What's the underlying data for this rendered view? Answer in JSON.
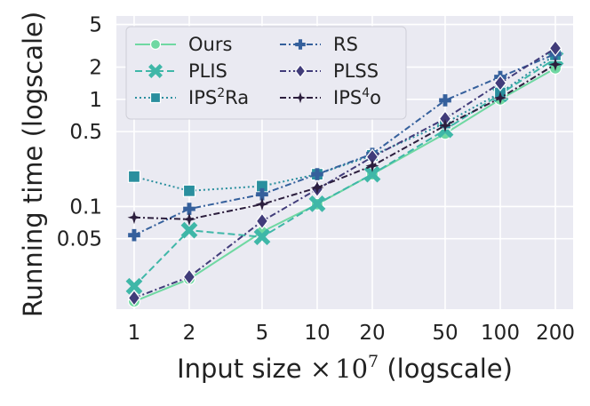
{
  "chart_data": {
    "type": "line",
    "xlabel": "Input size ×10^7 (logscale)",
    "xlabel_parts": {
      "main": "Input size ",
      "times": "×",
      "base": "10",
      "exp": "7",
      "suffix": " (logscale)"
    },
    "ylabel": "Running time (logscale)",
    "xscale": "log",
    "yscale": "log",
    "xlim": [
      0.8,
      250
    ],
    "ylim": [
      0.011,
      6
    ],
    "grid": true,
    "background": "#eaeaf2",
    "legend_position": "top-left",
    "x": [
      1,
      2,
      5,
      10,
      20,
      50,
      100,
      200
    ],
    "x_ticks": [
      "1",
      "2",
      "5",
      "10",
      "20",
      "50",
      "100",
      "200"
    ],
    "y_ticks": [
      {
        "value": 0.05,
        "label": "0.05"
      },
      {
        "value": 0.1,
        "label": "0.1"
      },
      {
        "value": 0.5,
        "label": "0.5"
      },
      {
        "value": 1,
        "label": "1"
      },
      {
        "value": 2,
        "label": "2"
      },
      {
        "value": 5,
        "label": "5"
      }
    ],
    "y_minor_grid": [
      0.05,
      0.1,
      0.5,
      1,
      2,
      5
    ],
    "series": [
      {
        "name": "Ours",
        "base": "Ours",
        "sup": "",
        "suffix": "",
        "color": "#6fd8a2",
        "dash": "",
        "marker": "circle",
        "values": [
          0.013,
          0.021,
          0.058,
          0.105,
          0.2,
          0.48,
          1.0,
          1.95
        ]
      },
      {
        "name": "PLIS",
        "base": "PLIS",
        "sup": "",
        "suffix": "",
        "color": "#3fb7a8",
        "dash": "8,4",
        "marker": "x",
        "values": [
          0.018,
          0.06,
          0.052,
          0.106,
          0.2,
          0.52,
          1.12,
          2.4
        ]
      },
      {
        "name": "IPS²Ra",
        "base": "IPS",
        "sup": "2",
        "suffix": "Ra",
        "color": "#2a8f9e",
        "dash": "2,3",
        "marker": "square",
        "values": [
          0.19,
          0.14,
          0.155,
          0.2,
          0.3,
          0.6,
          1.15,
          2.6
        ]
      },
      {
        "name": "RS",
        "base": "RS",
        "sup": "",
        "suffix": "",
        "color": "#35609c",
        "dash": "7,3,2,3",
        "marker": "plus",
        "values": [
          0.054,
          0.095,
          0.13,
          0.2,
          0.31,
          0.98,
          1.62,
          2.65
        ]
      },
      {
        "name": "PLSS",
        "base": "PLSS",
        "sup": "",
        "suffix": "",
        "color": "#413c7a",
        "dash": "7,3,2,3",
        "marker": "diamond",
        "values": [
          0.014,
          0.022,
          0.073,
          0.145,
          0.29,
          0.66,
          1.42,
          3.0
        ]
      },
      {
        "name": "IPS⁴o",
        "base": "IPS",
        "sup": "4",
        "suffix": "o",
        "color": "#2c1e3d",
        "dash": "7,3,2,3",
        "marker": "star",
        "values": [
          0.079,
          0.076,
          0.105,
          0.15,
          0.24,
          0.57,
          1.03,
          2.12
        ]
      }
    ]
  }
}
